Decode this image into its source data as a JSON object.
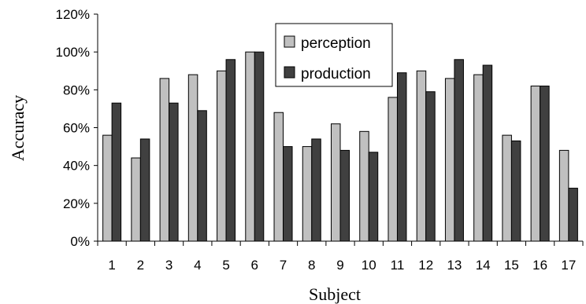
{
  "chart_data": {
    "type": "bar",
    "xlabel": "Subject",
    "ylabel": "Accuracy",
    "categories": [
      "1",
      "2",
      "3",
      "4",
      "5",
      "6",
      "7",
      "8",
      "9",
      "10",
      "11",
      "12",
      "13",
      "14",
      "15",
      "16",
      "17"
    ],
    "yticks": [
      "0%",
      "20%",
      "40%",
      "60%",
      "80%",
      "100%",
      "120%"
    ],
    "ylim": [
      0,
      120
    ],
    "legend_position": "top-center",
    "grid": false,
    "series": [
      {
        "name": "perception",
        "color": "#c0c0c0",
        "values": [
          56,
          44,
          86,
          88,
          90,
          100,
          68,
          50,
          62,
          58,
          76,
          90,
          86,
          88,
          56,
          82,
          48
        ]
      },
      {
        "name": "production",
        "color": "#404040",
        "values": [
          73,
          54,
          73,
          69,
          96,
          100,
          50,
          54,
          48,
          47,
          89,
          79,
          96,
          93,
          53,
          82,
          28
        ]
      }
    ]
  }
}
